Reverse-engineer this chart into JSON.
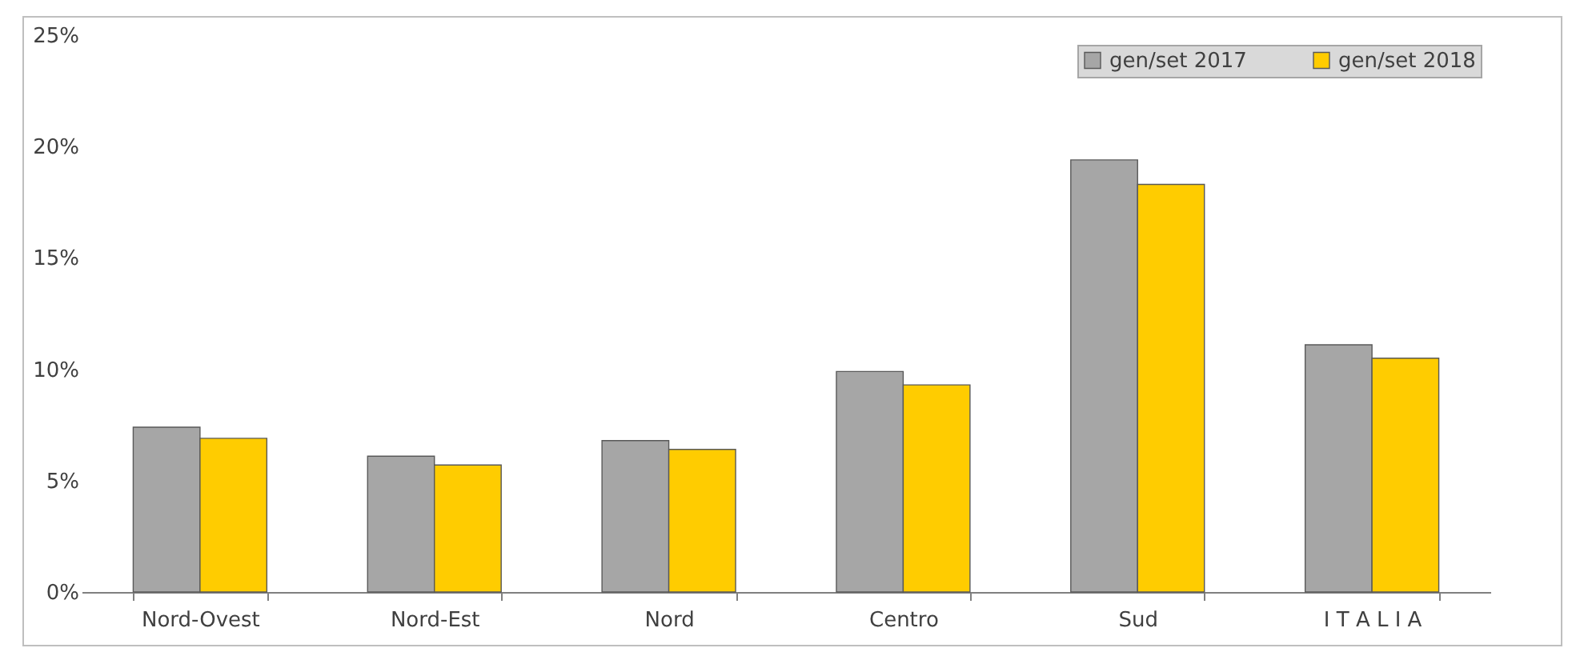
{
  "chart_data": {
    "type": "bar",
    "categories": [
      "Nord-Ovest",
      "Nord-Est",
      "Nord",
      "Centro",
      "Sud",
      "I T A L I A"
    ],
    "series": [
      {
        "name": "gen/set 2017",
        "color": "#a6a6a6",
        "values": [
          7.4,
          6.1,
          6.8,
          9.9,
          19.4,
          11.1
        ]
      },
      {
        "name": "gen/set 2018",
        "color": "#ffcc00",
        "values": [
          6.9,
          5.7,
          6.4,
          9.3,
          18.3,
          10.5
        ]
      }
    ],
    "ylim": [
      0,
      25
    ],
    "yticks": [
      {
        "value": 0,
        "label": "0%"
      },
      {
        "value": 5,
        "label": "5%"
      },
      {
        "value": 10,
        "label": "10%"
      },
      {
        "value": 15,
        "label": "15%"
      },
      {
        "value": 20,
        "label": "20%"
      },
      {
        "value": 25,
        "label": "25%"
      }
    ],
    "grid": false,
    "legend": "top right"
  }
}
